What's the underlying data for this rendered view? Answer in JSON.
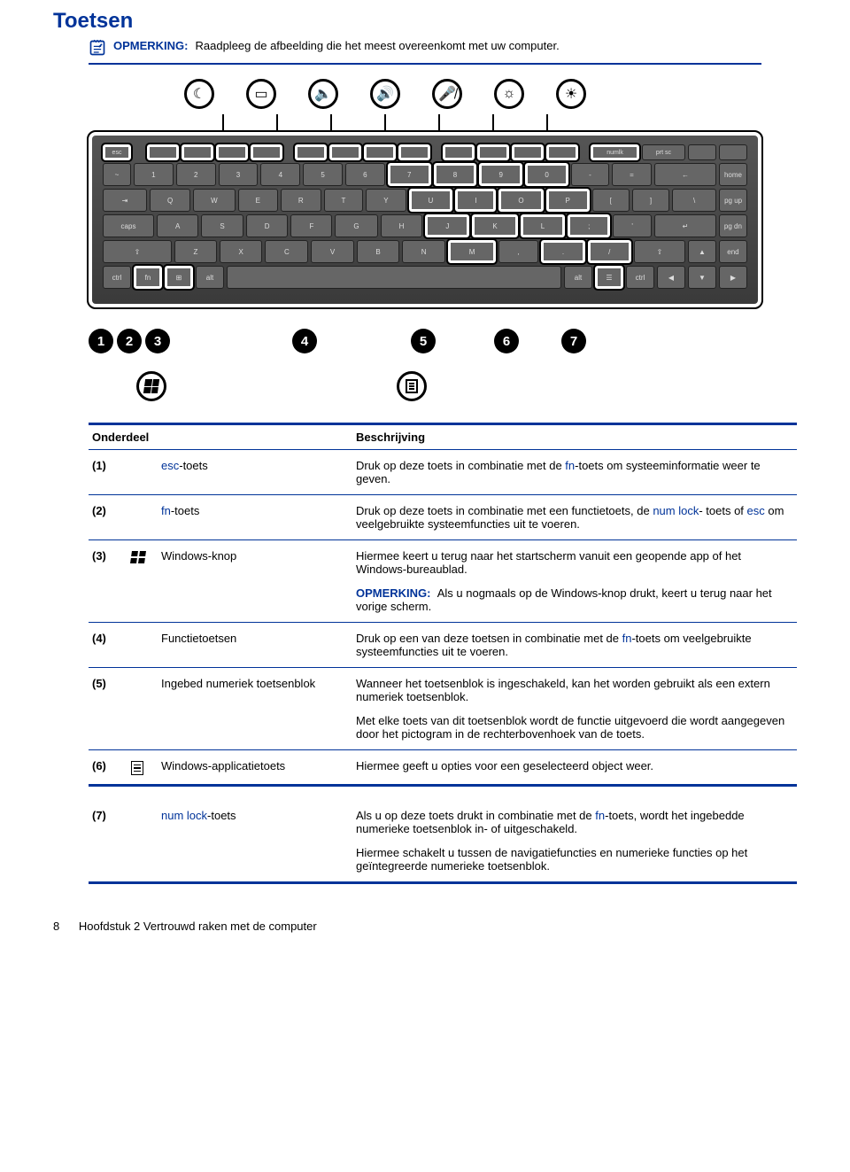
{
  "page": {
    "title": "Toetsen",
    "note_label": "OPMERKING:",
    "note_text": "Raadpleeg de afbeelding die het meest overeenkomt met uw computer.",
    "footer_page": "8",
    "footer_chapter": "Hoofdstuk 2   Vertrouwd raken met de computer"
  },
  "table": {
    "header_component": "Onderdeel",
    "header_description": "Beschrijving",
    "rows": [
      {
        "num": "(1)",
        "name_pre": "",
        "name_hl": "esc",
        "name_post": "-toets",
        "desc": [
          {
            "type": "mixed",
            "parts": [
              "Druk op deze toets in combinatie met de ",
              {
                "hl": "fn"
              },
              "-toets om systeeminformatie weer te geven."
            ]
          }
        ]
      },
      {
        "num": "(2)",
        "name_pre": "",
        "name_hl": "fn",
        "name_post": "-toets",
        "desc": [
          {
            "type": "mixed",
            "parts": [
              "Druk op deze toets in combinatie met een functietoets, de ",
              {
                "hl": "num lock"
              },
              "- toets of ",
              {
                "hl": "esc"
              },
              " om veelgebruikte systeemfuncties uit te voeren."
            ]
          }
        ]
      },
      {
        "num": "(3)",
        "icon": "windows",
        "name_plain": "Windows-knop",
        "desc": [
          {
            "type": "plain",
            "text": "Hiermee keert u terug naar het startscherm vanuit een geopende app of het Windows-bureaublad."
          },
          {
            "type": "note",
            "label": "OPMERKING:",
            "text": "Als u nogmaals op de Windows-knop drukt, keert u terug naar het vorige scherm."
          }
        ]
      },
      {
        "num": "(4)",
        "name_plain": "Functietoetsen",
        "desc": [
          {
            "type": "mixed",
            "parts": [
              "Druk op een van deze toetsen in combinatie met de ",
              {
                "hl": "fn"
              },
              "-toets om veelgebruikte systeemfuncties uit te voeren."
            ]
          }
        ]
      },
      {
        "num": "(5)",
        "name_plain": "Ingebed numeriek toetsenblok",
        "desc": [
          {
            "type": "plain",
            "text": "Wanneer het toetsenblok is ingeschakeld, kan het worden gebruikt als een extern numeriek toetsenblok."
          },
          {
            "type": "plain",
            "text": "Met elke toets van dit toetsenblok wordt de functie uitgevoerd die wordt aangegeven door het pictogram in de rechterbovenhoek van de toets."
          }
        ]
      },
      {
        "num": "(6)",
        "icon": "menu",
        "name_plain": "Windows-applicatietoets",
        "desc": [
          {
            "type": "plain",
            "text": "Hiermee geeft u opties voor een geselecteerd object weer."
          }
        ],
        "thick": true
      },
      {
        "num": "(7)",
        "name_pre": "",
        "name_hl": "num lock",
        "name_post": "-toets",
        "desc": [
          {
            "type": "mixed",
            "parts": [
              "Als u op deze toets drukt in combinatie met de ",
              {
                "hl": "fn"
              },
              "-toets, wordt het ingebedde numerieke toetsenblok in- of uitgeschakeld."
            ]
          },
          {
            "type": "plain",
            "text": "Hiermee schakelt u tussen de navigatiefuncties en numerieke functies op het geïntegreerde numerieke toetsenblok."
          }
        ],
        "thick": true,
        "gap_before": true
      }
    ]
  },
  "top_icons": [
    "sleep",
    "display",
    "vol-down",
    "vol-up",
    "mic-mute",
    "bright-down",
    "bright-up"
  ],
  "callouts": [
    "1",
    "2",
    "3",
    "4",
    "5",
    "6",
    "7"
  ],
  "colors": {
    "accent": "#003399",
    "keyboard_bg": "#4a4a4a",
    "key_bg": "#666666"
  }
}
